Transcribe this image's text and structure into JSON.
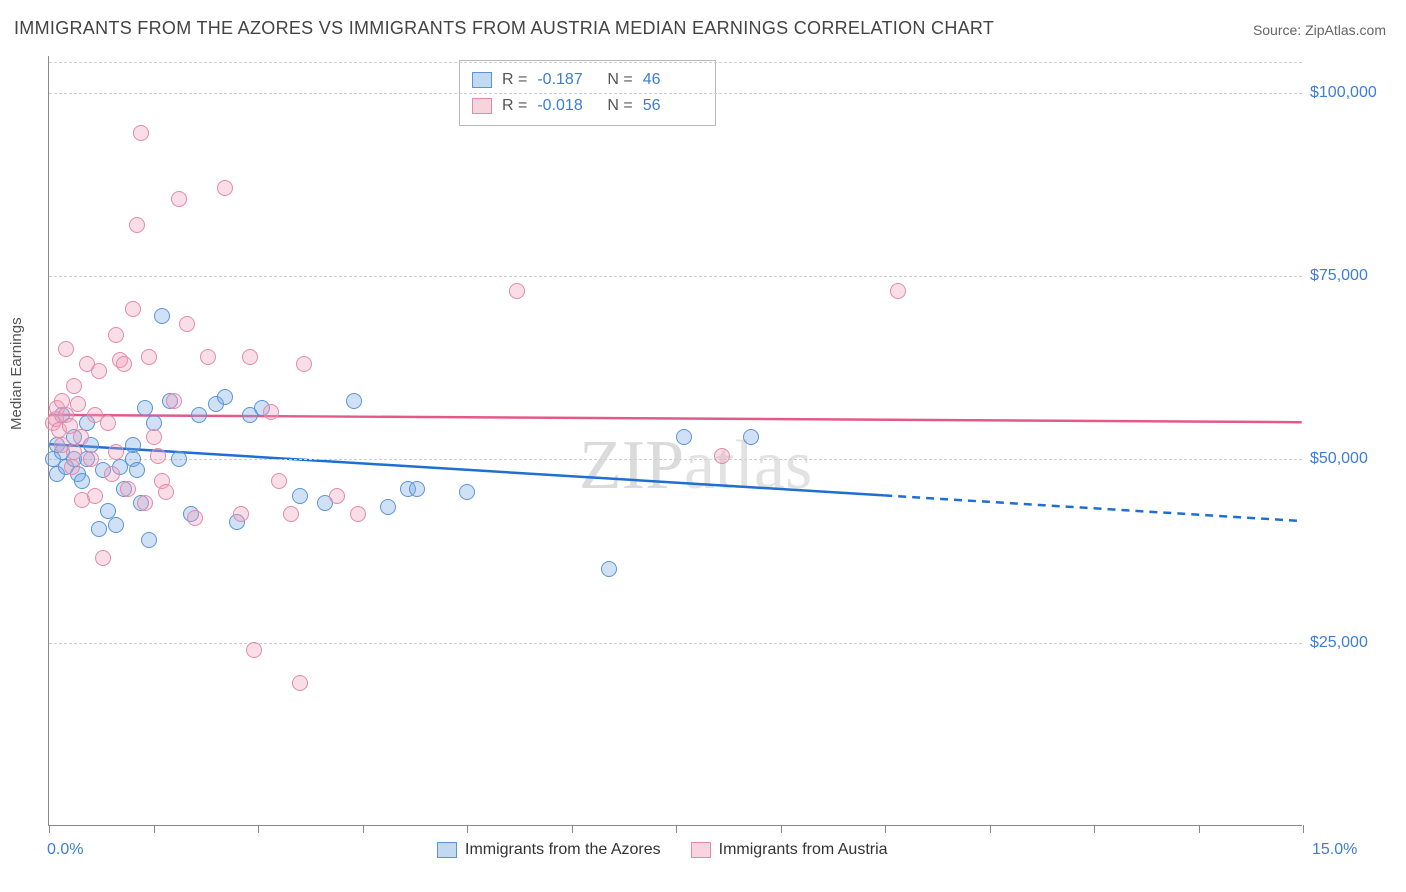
{
  "title": "IMMIGRANTS FROM THE AZORES VS IMMIGRANTS FROM AUSTRIA MEDIAN EARNINGS CORRELATION CHART",
  "source": "Source: ZipAtlas.com",
  "watermark": "ZIPatlas",
  "ylabel": "Median Earnings",
  "chart": {
    "type": "scatter",
    "background_color": "#ffffff",
    "grid_color": "#d0d0d0",
    "xlim": [
      0,
      15
    ],
    "ylim": [
      0,
      105000
    ],
    "x_left_label": "0.0%",
    "x_right_label": "15.0%",
    "yticks": [
      {
        "v": 25000,
        "label": "$25,000"
      },
      {
        "v": 50000,
        "label": "$50,000"
      },
      {
        "v": 75000,
        "label": "$75,000"
      },
      {
        "v": 100000,
        "label": "$100,000"
      }
    ],
    "xtick_positions": [
      0,
      1.25,
      2.5,
      3.75,
      5.0,
      6.25,
      7.5,
      8.75,
      10.0,
      11.25,
      12.5,
      13.75,
      15.0
    ],
    "series": [
      {
        "name": "Immigrants from the Azores",
        "color_fill": "rgba(120,170,230,0.35)",
        "color_stroke": "#5b93d6",
        "trend_color": "#1f6fd0",
        "R": "-0.187",
        "N": "46",
        "trend": {
          "x1": 0,
          "y1": 52000,
          "x2": 10,
          "y2": 45000,
          "dashed_from_x": 10,
          "dashed_to_x": 15,
          "dashed_to_y": 41500
        },
        "points": [
          [
            0.05,
            50000
          ],
          [
            0.1,
            48000
          ],
          [
            0.1,
            52000
          ],
          [
            0.15,
            56000
          ],
          [
            0.15,
            51000
          ],
          [
            0.2,
            49000
          ],
          [
            0.3,
            50000
          ],
          [
            0.3,
            53000
          ],
          [
            0.35,
            48000
          ],
          [
            0.4,
            47000
          ],
          [
            0.45,
            55000
          ],
          [
            0.45,
            50000
          ],
          [
            0.5,
            52000
          ],
          [
            0.6,
            40500
          ],
          [
            0.65,
            48500
          ],
          [
            0.7,
            43000
          ],
          [
            0.8,
            41000
          ],
          [
            0.85,
            49000
          ],
          [
            0.9,
            46000
          ],
          [
            1.0,
            50000
          ],
          [
            1.0,
            52000
          ],
          [
            1.05,
            48500
          ],
          [
            1.1,
            44000
          ],
          [
            1.15,
            57000
          ],
          [
            1.2,
            39000
          ],
          [
            1.25,
            55000
          ],
          [
            1.35,
            69500
          ],
          [
            1.45,
            58000
          ],
          [
            1.55,
            50000
          ],
          [
            1.7,
            42500
          ],
          [
            1.8,
            56000
          ],
          [
            2.0,
            57500
          ],
          [
            2.1,
            58500
          ],
          [
            2.25,
            41500
          ],
          [
            2.4,
            56000
          ],
          [
            2.55,
            57000
          ],
          [
            3.0,
            45000
          ],
          [
            3.3,
            44000
          ],
          [
            3.65,
            58000
          ],
          [
            4.05,
            43500
          ],
          [
            4.3,
            46000
          ],
          [
            4.4,
            46000
          ],
          [
            5.0,
            45500
          ],
          [
            6.7,
            35000
          ],
          [
            7.6,
            53000
          ],
          [
            8.4,
            53000
          ]
        ]
      },
      {
        "name": "Immigrants from Austria",
        "color_fill": "rgba(240,160,185,0.35)",
        "color_stroke": "#e48aa8",
        "trend_color": "#e35a8a",
        "R": "-0.018",
        "N": "56",
        "trend": {
          "x1": 0,
          "y1": 56000,
          "x2": 15,
          "y2": 55000
        },
        "points": [
          [
            0.05,
            55000
          ],
          [
            0.08,
            55500
          ],
          [
            0.1,
            57000
          ],
          [
            0.12,
            54000
          ],
          [
            0.15,
            52000
          ],
          [
            0.15,
            58000
          ],
          [
            0.2,
            56000
          ],
          [
            0.2,
            65000
          ],
          [
            0.25,
            54500
          ],
          [
            0.28,
            49000
          ],
          [
            0.3,
            60000
          ],
          [
            0.3,
            51000
          ],
          [
            0.35,
            57500
          ],
          [
            0.38,
            53000
          ],
          [
            0.4,
            44500
          ],
          [
            0.45,
            63000
          ],
          [
            0.5,
            50000
          ],
          [
            0.55,
            56000
          ],
          [
            0.55,
            45000
          ],
          [
            0.6,
            62000
          ],
          [
            0.65,
            36500
          ],
          [
            0.7,
            55000
          ],
          [
            0.75,
            48000
          ],
          [
            0.8,
            67000
          ],
          [
            0.8,
            51000
          ],
          [
            0.85,
            63500
          ],
          [
            0.9,
            63000
          ],
          [
            0.95,
            46000
          ],
          [
            1.0,
            70500
          ],
          [
            1.05,
            82000
          ],
          [
            1.1,
            94500
          ],
          [
            1.15,
            44000
          ],
          [
            1.2,
            64000
          ],
          [
            1.25,
            53000
          ],
          [
            1.3,
            50500
          ],
          [
            1.35,
            47000
          ],
          [
            1.4,
            45500
          ],
          [
            1.5,
            58000
          ],
          [
            1.55,
            85500
          ],
          [
            1.65,
            68500
          ],
          [
            1.75,
            42000
          ],
          [
            1.9,
            64000
          ],
          [
            2.1,
            87000
          ],
          [
            2.3,
            42500
          ],
          [
            2.4,
            64000
          ],
          [
            2.45,
            24000
          ],
          [
            2.65,
            56500
          ],
          [
            2.75,
            47000
          ],
          [
            2.9,
            42500
          ],
          [
            3.0,
            19500
          ],
          [
            3.05,
            63000
          ],
          [
            3.45,
            45000
          ],
          [
            3.7,
            42500
          ],
          [
            5.6,
            73000
          ],
          [
            8.05,
            50500
          ],
          [
            10.15,
            73000
          ]
        ]
      }
    ],
    "legend_bottom": [
      {
        "swatch": "blue",
        "label": "Immigrants from the Azores"
      },
      {
        "swatch": "pink",
        "label": "Immigrants from Austria"
      }
    ]
  }
}
